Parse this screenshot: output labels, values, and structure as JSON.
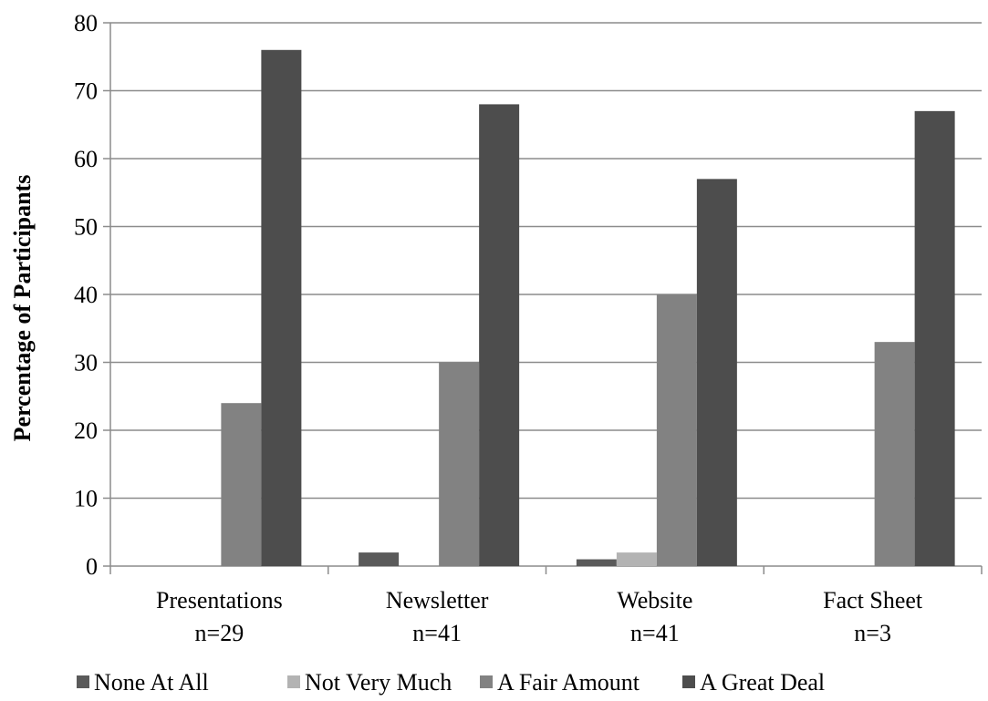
{
  "chart_data": {
    "type": "bar",
    "title": "",
    "xlabel": "",
    "ylabel": "Percentage of Participants",
    "ylim": [
      0,
      80
    ],
    "yticks": [
      0,
      10,
      20,
      30,
      40,
      50,
      60,
      70,
      80
    ],
    "grid": true,
    "legend_position": "bottom",
    "categories": [
      {
        "label": "Presentations",
        "n": "n=29"
      },
      {
        "label": "Newsletter",
        "n": "n=41"
      },
      {
        "label": "Website",
        "n": "n=41"
      },
      {
        "label": "Fact Sheet",
        "n": "n=3"
      }
    ],
    "series": [
      {
        "name": "None At All",
        "color": "#5a5a5a",
        "values": [
          0,
          2,
          1,
          0
        ]
      },
      {
        "name": "Not Very Much",
        "color": "#b3b3b3",
        "values": [
          0,
          0,
          2,
          0
        ]
      },
      {
        "name": "A Fair Amount",
        "color": "#828282",
        "values": [
          24,
          30,
          40,
          33
        ]
      },
      {
        "name": "A Great Deal",
        "color": "#4d4d4d",
        "values": [
          76,
          68,
          57,
          67
        ]
      }
    ]
  }
}
